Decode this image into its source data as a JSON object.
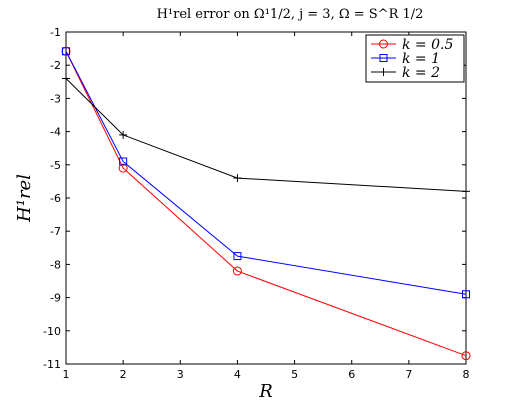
{
  "chart_data": {
    "type": "line",
    "title": "H¹rel error on Ω¹1/2, j = 3, Ω = S^R 1/2",
    "xlabel": "R",
    "ylabel": "H¹rel",
    "x": [
      1,
      2,
      4,
      8
    ],
    "x_ticks": [
      1,
      2,
      3,
      4,
      5,
      6,
      7,
      8
    ],
    "y_ticks": [
      -1,
      -2,
      -3,
      -4,
      -5,
      -6,
      -7,
      -8,
      -9,
      -10,
      -11
    ],
    "xlim": [
      1,
      8
    ],
    "ylim": [
      -11,
      -1
    ],
    "grid": false,
    "legend_position": "top-right",
    "series": [
      {
        "name": "k = 0.5",
        "marker": "circle",
        "color": "#ff0000",
        "values": [
          -1.58,
          -5.1,
          -8.2,
          -10.75
        ]
      },
      {
        "name": "k = 1",
        "marker": "square",
        "color": "#0000ff",
        "values": [
          -1.58,
          -4.9,
          -7.75,
          -8.9
        ]
      },
      {
        "name": "k = 2",
        "marker": "plus",
        "color": "#000000",
        "values": [
          -2.4,
          -4.1,
          -5.4,
          -5.8
        ]
      }
    ]
  }
}
